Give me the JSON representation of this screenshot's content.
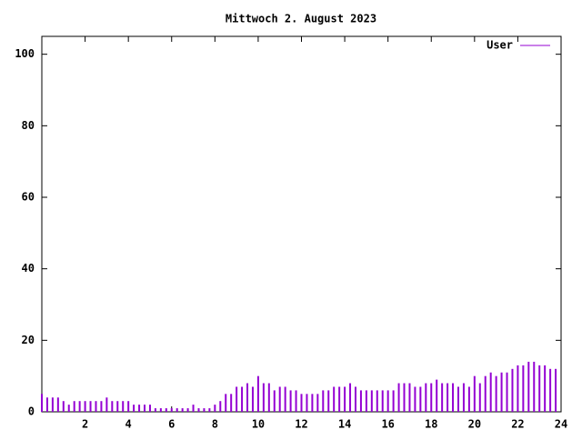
{
  "chart_data": {
    "type": "impulse",
    "title": "Mittwoch 2. August 2023",
    "x": [
      0,
      0.25,
      0.5,
      0.75,
      1,
      1.25,
      1.5,
      1.75,
      2,
      2.25,
      2.5,
      2.75,
      3,
      3.25,
      3.5,
      3.75,
      4,
      4.25,
      4.5,
      4.75,
      5,
      5.25,
      5.5,
      5.75,
      6,
      6.25,
      6.5,
      6.75,
      7,
      7.25,
      7.5,
      7.75,
      8,
      8.25,
      8.5,
      8.75,
      9,
      9.25,
      9.5,
      9.75,
      10,
      10.25,
      10.5,
      10.75,
      11,
      11.25,
      11.5,
      11.75,
      12,
      12.25,
      12.5,
      12.75,
      13,
      13.25,
      13.5,
      13.75,
      14,
      14.25,
      14.5,
      14.75,
      15,
      15.25,
      15.5,
      15.75,
      16,
      16.25,
      16.5,
      16.75,
      17,
      17.25,
      17.5,
      17.75,
      18,
      18.25,
      18.5,
      18.75,
      19,
      19.25,
      19.5,
      19.75,
      20,
      20.25,
      20.5,
      20.75,
      21,
      21.25,
      21.5,
      21.75,
      22,
      22.25,
      22.5,
      22.75,
      23,
      23.25,
      23.5,
      23.75
    ],
    "series": [
      {
        "name": "User",
        "color": "#9400d3",
        "values": [
          5,
          4,
          4,
          4,
          3,
          2,
          3,
          3,
          3,
          3,
          3,
          3,
          4,
          3,
          3,
          3,
          3,
          2,
          2,
          2,
          2,
          1,
          1,
          1,
          1,
          1,
          1,
          1,
          2,
          1,
          1,
          1,
          2,
          3,
          5,
          5,
          7,
          7,
          8,
          7,
          10,
          8,
          8,
          6,
          7,
          7,
          6,
          6,
          5,
          5,
          5,
          5,
          6,
          6,
          7,
          7,
          7,
          8,
          7,
          6,
          6,
          6,
          6,
          6,
          6,
          6,
          8,
          8,
          8,
          7,
          7,
          8,
          8,
          9,
          8,
          8,
          8,
          7,
          8,
          7,
          10,
          8,
          10,
          11,
          10,
          11,
          11,
          12,
          13,
          13,
          14,
          14,
          13,
          13,
          12,
          12
        ]
      }
    ],
    "xlim": [
      0,
      24
    ],
    "xticks": [
      2,
      4,
      6,
      8,
      10,
      12,
      14,
      16,
      18,
      20,
      22,
      24
    ],
    "ylim": [
      0,
      105
    ],
    "yticks": [
      0,
      20,
      40,
      60,
      80,
      100
    ],
    "legend": "top-right"
  }
}
